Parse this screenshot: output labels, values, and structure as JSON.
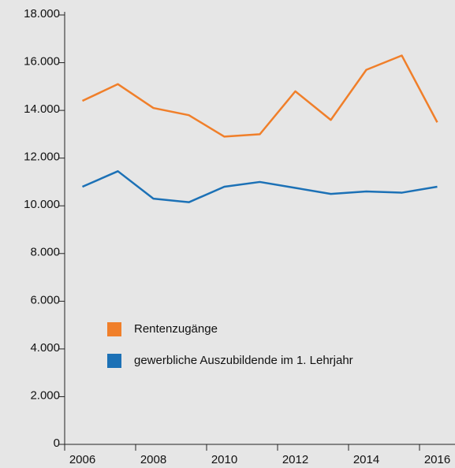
{
  "chart_data": {
    "type": "line",
    "x": [
      2006,
      2007,
      2008,
      2009,
      2010,
      2011,
      2012,
      2013,
      2014,
      2015,
      2016
    ],
    "series": [
      {
        "name": "Rentenzugänge",
        "color": "#f07f2a",
        "values": [
          14400,
          15100,
          14100,
          13800,
          12900,
          13000,
          14800,
          13600,
          15700,
          16300,
          13500
        ]
      },
      {
        "name": "gewerbliche Auszubildende im 1. Lehrjahr",
        "color": "#1c71b6",
        "values": [
          10800,
          11450,
          10300,
          10150,
          10800,
          11000,
          10750,
          10500,
          10600,
          10550,
          10800
        ]
      }
    ],
    "xlim": [
      2005.5,
      2016.5
    ],
    "xticks": [
      2006,
      2008,
      2010,
      2012,
      2014,
      2016
    ],
    "ylim": [
      0,
      18000
    ],
    "yticks": [
      0,
      {
        "value": 2000,
        "label": "2.000"
      },
      {
        "value": 4000,
        "label": "4.000"
      },
      {
        "value": 6000,
        "label": "6.000"
      },
      {
        "value": 8000,
        "label": "8.000"
      },
      {
        "value": 10000,
        "label": "10.000"
      },
      {
        "value": 12000,
        "label": "12.000"
      },
      {
        "value": 14000,
        "label": "14.000"
      },
      {
        "value": 16000,
        "label": "16.000"
      },
      {
        "value": 18000,
        "label": "18.000"
      }
    ],
    "grid": false
  }
}
